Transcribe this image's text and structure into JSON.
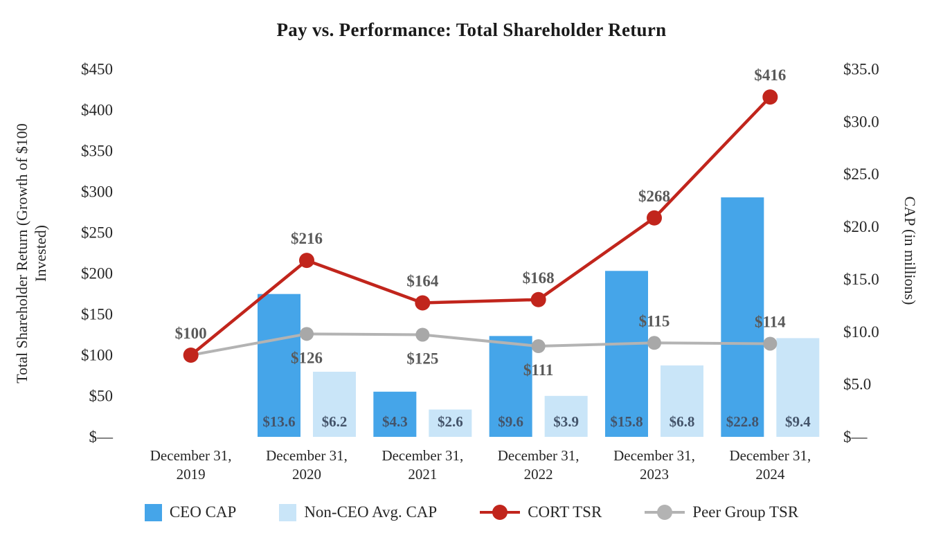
{
  "chart_data": {
    "type": "combo-bar-line",
    "title": "Pay vs. Performance: Total Shareholder Return",
    "categories": [
      [
        "December 31,",
        "2019"
      ],
      [
        "December 31,",
        "2020"
      ],
      [
        "December 31,",
        "2021"
      ],
      [
        "December 31,",
        "2022"
      ],
      [
        "December 31,",
        "2023"
      ],
      [
        "December 31,",
        "2024"
      ]
    ],
    "bar_series": [
      {
        "name": "CEO CAP",
        "axis": "right",
        "color": "#45A5E9",
        "values": [
          null,
          13.6,
          4.3,
          9.6,
          15.8,
          22.8
        ],
        "labels": [
          "",
          "$13.6",
          "$4.3",
          "$9.6",
          "$15.8",
          "$22.8"
        ]
      },
      {
        "name": "Non-CEO Avg. CAP",
        "axis": "right",
        "color": "#C9E5F8",
        "values": [
          null,
          6.2,
          2.6,
          3.9,
          6.8,
          9.4
        ],
        "labels": [
          "",
          "$6.2",
          "$2.6",
          "$3.9",
          "$6.8",
          "$9.4"
        ]
      }
    ],
    "line_series": [
      {
        "name": "CORT TSR",
        "axis": "left",
        "color": "#C1251C",
        "marker_color": "#C1251C",
        "stroke_width": 4.5,
        "marker_radius": 11,
        "values": [
          100,
          216,
          164,
          168,
          268,
          416
        ],
        "labels": [
          {
            "text": "$100",
            "pos": "above"
          },
          {
            "text": "$216",
            "pos": "above"
          },
          {
            "text": "$164",
            "pos": "above"
          },
          {
            "text": "$168",
            "pos": "above"
          },
          {
            "text": "$268",
            "pos": "above"
          },
          {
            "text": "$416",
            "pos": "above"
          }
        ]
      },
      {
        "name": "Peer Group TSR",
        "axis": "left",
        "color": "#B3B3B3",
        "marker_color": "#A8A8A8",
        "stroke_width": 4,
        "marker_radius": 10,
        "values": [
          100,
          126,
          125,
          111,
          115,
          114
        ],
        "labels": [
          {
            "text": "",
            "pos": "above"
          },
          {
            "text": "$126",
            "pos": "below"
          },
          {
            "text": "$125",
            "pos": "below"
          },
          {
            "text": "$111",
            "pos": "below"
          },
          {
            "text": "$115",
            "pos": "above"
          },
          {
            "text": "$114",
            "pos": "above"
          }
        ]
      }
    ],
    "left_axis": {
      "label": "Total Shareholder Return (Growth of $100 Invested)",
      "label_lines": [
        "Total Shareholder Return (Growth of $100",
        "Invested)"
      ],
      "tick_labels": [
        "$450",
        "$400",
        "$350",
        "$300",
        "$250",
        "$200",
        "$150",
        "$100",
        "$50",
        "$—"
      ],
      "tick_values": [
        450,
        400,
        350,
        300,
        250,
        200,
        150,
        100,
        50,
        0
      ],
      "min": 0,
      "max": 450
    },
    "right_axis": {
      "label": "CAP (in millions)",
      "tick_labels": [
        "$35.0",
        "$30.0",
        "$25.0",
        "$20.0",
        "$15.0",
        "$10.0",
        "$5.0",
        "$—"
      ],
      "tick_values": [
        35,
        30,
        25,
        20,
        15,
        10,
        5,
        0
      ],
      "min": 0,
      "max": 35
    },
    "grid": "off",
    "legend_position": "bottom",
    "legend": [
      {
        "key": "ceo-cap",
        "type": "square",
        "label": "CEO CAP",
        "color": "#45A5E9"
      },
      {
        "key": "non-ceo-avg-cap",
        "type": "square",
        "label": "Non-CEO Avg. CAP",
        "color": "#C9E5F8"
      },
      {
        "key": "cort-tsr",
        "type": "line",
        "label": "CORT TSR",
        "color": "#C1251C"
      },
      {
        "key": "peer-group-tsr",
        "type": "line",
        "label": "Peer Group TSR",
        "color": "#B3B3B3"
      }
    ],
    "styles": {
      "line_label_color": "#595959",
      "bar_label_color": "#44546A",
      "tick_color": "#262626",
      "axis_title_color": "#262626",
      "title_color": "#1a1a1a"
    }
  }
}
